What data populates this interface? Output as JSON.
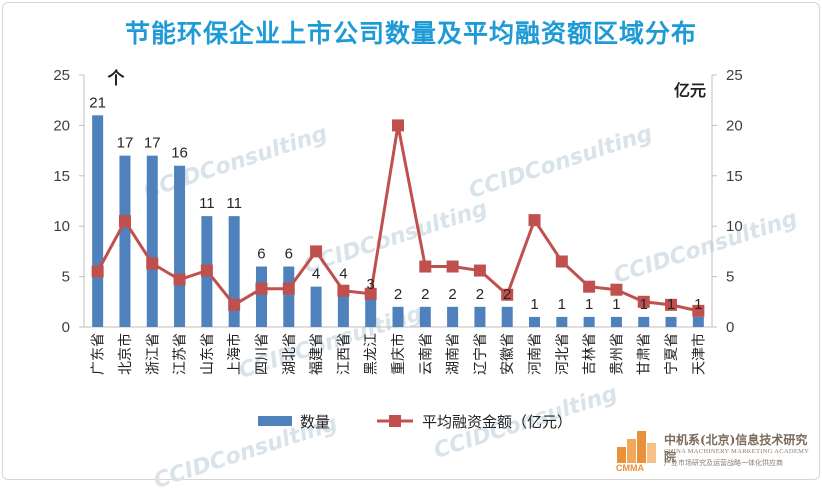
{
  "chart_data": {
    "type": "bar",
    "title": "节能环保企业上市公司数量及平均融资额区域分布",
    "left_axis_unit": "个",
    "right_axis_unit": "亿元",
    "y_left": {
      "min": 0,
      "max": 25,
      "ticks": [
        0,
        5,
        10,
        15,
        20,
        25
      ]
    },
    "y_right": {
      "min": 0,
      "max": 25,
      "ticks": [
        0,
        5,
        10,
        15,
        20,
        25
      ]
    },
    "categories": [
      "广东省",
      "北京市",
      "浙江省",
      "江苏省",
      "山东省",
      "上海市",
      "四川省",
      "湖北省",
      "福建省",
      "江西省",
      "黑龙江",
      "重庆市",
      "云南省",
      "湖南省",
      "辽宁省",
      "安徽省",
      "河南省",
      "河北省",
      "吉林省",
      "贵州省",
      "甘肃省",
      "宁夏省",
      "天津市"
    ],
    "series": [
      {
        "name": "数量",
        "type": "bar",
        "axis": "left",
        "color": "#4f81bd",
        "values": [
          21,
          17,
          17,
          16,
          11,
          11,
          6,
          6,
          4,
          4,
          3,
          2,
          2,
          2,
          2,
          2,
          1,
          1,
          1,
          1,
          1,
          1,
          1
        ],
        "labels": [
          "21",
          "17",
          "17",
          "16",
          "11",
          "11",
          "6",
          "6",
          "4",
          "4",
          "3",
          "2",
          "2",
          "2",
          "2",
          "2",
          "1",
          "1",
          "1",
          "1",
          "1",
          "1",
          "1"
        ]
      },
      {
        "name": "平均融资金额（亿元）",
        "type": "line",
        "axis": "right",
        "color": "#c0504d",
        "values": [
          5.5,
          10.5,
          6.3,
          4.7,
          5.6,
          2.2,
          3.8,
          3.8,
          7.5,
          3.6,
          3.3,
          20.0,
          6.0,
          6.0,
          5.6,
          3.2,
          10.6,
          6.5,
          4.0,
          3.7,
          2.5,
          2.2,
          1.6
        ]
      }
    ],
    "legend_position": "bottom",
    "grid": false
  },
  "watermark_text": "CCIDConsulting",
  "logo": {
    "name_cn": "中机系(北京)信息技术研究院",
    "name_en": "CHINA MACHINERY MARKETING ACADEMY",
    "tagline": "产业市场研究及运营战略一体化供应商",
    "abbr": "CMMA",
    "brand_color": "#e8913a"
  }
}
